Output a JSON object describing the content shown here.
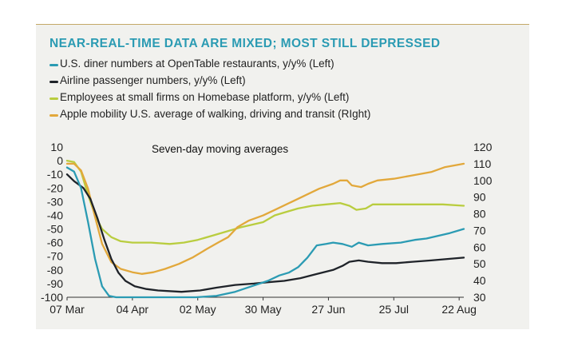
{
  "chart_data": {
    "type": "line",
    "title": "NEAR-REAL-TIME DATA ARE MIXED; MOST STILL DEPRESSED",
    "annotation": "Seven-day moving averages",
    "x_ticks": [
      "07 Mar",
      "04 Apr",
      "02 May",
      "30 May",
      "27 Jun",
      "25 Jul",
      "22 Aug"
    ],
    "x_range": [
      "2020-03-07",
      "2020-08-24"
    ],
    "left_axis": {
      "ylim": [
        -100,
        10
      ],
      "ticks": [
        10,
        0,
        -10,
        -20,
        -30,
        -40,
        -50,
        -60,
        -70,
        -80,
        -90,
        -100
      ]
    },
    "right_axis": {
      "ylim": [
        30,
        120
      ],
      "ticks": [
        120,
        110,
        100,
        90,
        80,
        70,
        60,
        50,
        40,
        30
      ]
    },
    "grid": false,
    "legend_position": "top-left",
    "series": [
      {
        "name": "U.S. diner numbers at OpenTable restaurants, y/y% (Left)",
        "axis": "left",
        "color": "#2b9bb3",
        "points": [
          [
            "2020-03-07",
            -5
          ],
          [
            "2020-03-10",
            -8
          ],
          [
            "2020-03-13",
            -20
          ],
          [
            "2020-03-16",
            -45
          ],
          [
            "2020-03-19",
            -72
          ],
          [
            "2020-03-22",
            -92
          ],
          [
            "2020-03-25",
            -99
          ],
          [
            "2020-03-28",
            -100
          ],
          [
            "2020-04-15",
            -100
          ],
          [
            "2020-05-01",
            -100
          ],
          [
            "2020-05-10",
            -99
          ],
          [
            "2020-05-18",
            -96
          ],
          [
            "2020-05-25",
            -92
          ],
          [
            "2020-06-01",
            -88
          ],
          [
            "2020-06-06",
            -84
          ],
          [
            "2020-06-10",
            -82
          ],
          [
            "2020-06-14",
            -78
          ],
          [
            "2020-06-18",
            -71
          ],
          [
            "2020-06-22",
            -62
          ],
          [
            "2020-06-26",
            -61
          ],
          [
            "2020-06-29",
            -60
          ],
          [
            "2020-07-03",
            -61
          ],
          [
            "2020-07-07",
            -63
          ],
          [
            "2020-07-10",
            -60
          ],
          [
            "2020-07-14",
            -62
          ],
          [
            "2020-07-20",
            -61
          ],
          [
            "2020-07-28",
            -60
          ],
          [
            "2020-08-03",
            -58
          ],
          [
            "2020-08-08",
            -57
          ],
          [
            "2020-08-13",
            -55
          ],
          [
            "2020-08-18",
            -53
          ],
          [
            "2020-08-24",
            -50
          ]
        ]
      },
      {
        "name": "Airline passenger numbers, y/y% (Left)",
        "axis": "left",
        "color": "#1f2329",
        "points": [
          [
            "2020-03-07",
            -10
          ],
          [
            "2020-03-10",
            -15
          ],
          [
            "2020-03-14",
            -20
          ],
          [
            "2020-03-17",
            -28
          ],
          [
            "2020-03-20",
            -42
          ],
          [
            "2020-03-23",
            -58
          ],
          [
            "2020-03-26",
            -72
          ],
          [
            "2020-03-29",
            -82
          ],
          [
            "2020-04-01",
            -88
          ],
          [
            "2020-04-05",
            -92
          ],
          [
            "2020-04-10",
            -94
          ],
          [
            "2020-04-15",
            -95
          ],
          [
            "2020-04-25",
            -96
          ],
          [
            "2020-05-03",
            -95
          ],
          [
            "2020-05-10",
            -93
          ],
          [
            "2020-05-18",
            -91
          ],
          [
            "2020-05-26",
            -90
          ],
          [
            "2020-06-01",
            -89
          ],
          [
            "2020-06-08",
            -88
          ],
          [
            "2020-06-15",
            -86
          ],
          [
            "2020-06-22",
            -83
          ],
          [
            "2020-06-29",
            -80
          ],
          [
            "2020-07-03",
            -77
          ],
          [
            "2020-07-06",
            -74
          ],
          [
            "2020-07-10",
            -73
          ],
          [
            "2020-07-14",
            -74
          ],
          [
            "2020-07-20",
            -75
          ],
          [
            "2020-07-26",
            -75
          ],
          [
            "2020-08-02",
            -74
          ],
          [
            "2020-08-10",
            -73
          ],
          [
            "2020-08-17",
            -72
          ],
          [
            "2020-08-24",
            -71
          ]
        ]
      },
      {
        "name": "Employees at small firms on Homebase platform, y/y% (Left)",
        "axis": "left",
        "color": "#b9cd3f",
        "points": [
          [
            "2020-03-07",
            0
          ],
          [
            "2020-03-10",
            -1
          ],
          [
            "2020-03-13",
            -8
          ],
          [
            "2020-03-16",
            -25
          ],
          [
            "2020-03-19",
            -40
          ],
          [
            "2020-03-22",
            -50
          ],
          [
            "2020-03-26",
            -56
          ],
          [
            "2020-03-30",
            -59
          ],
          [
            "2020-04-04",
            -60
          ],
          [
            "2020-04-12",
            -60
          ],
          [
            "2020-04-20",
            -61
          ],
          [
            "2020-04-26",
            -60
          ],
          [
            "2020-05-02",
            -58
          ],
          [
            "2020-05-08",
            -55
          ],
          [
            "2020-05-14",
            -52
          ],
          [
            "2020-05-20",
            -49
          ],
          [
            "2020-05-25",
            -47
          ],
          [
            "2020-05-30",
            -45
          ],
          [
            "2020-06-04",
            -40
          ],
          [
            "2020-06-08",
            -38
          ],
          [
            "2020-06-14",
            -35
          ],
          [
            "2020-06-20",
            -33
          ],
          [
            "2020-06-26",
            -32
          ],
          [
            "2020-07-02",
            -31
          ],
          [
            "2020-07-06",
            -33
          ],
          [
            "2020-07-09",
            -36
          ],
          [
            "2020-07-13",
            -35
          ],
          [
            "2020-07-16",
            -32
          ],
          [
            "2020-07-25",
            -32
          ],
          [
            "2020-08-05",
            -32
          ],
          [
            "2020-08-15",
            -32
          ],
          [
            "2020-08-24",
            -33
          ]
        ]
      },
      {
        "name": "Apple mobility U.S. average of walking, driving and transit (RIght)",
        "axis": "right",
        "color": "#e2a83b",
        "points": [
          [
            "2020-03-07",
            110
          ],
          [
            "2020-03-10",
            110
          ],
          [
            "2020-03-13",
            106
          ],
          [
            "2020-03-16",
            95
          ],
          [
            "2020-03-19",
            78
          ],
          [
            "2020-03-22",
            62
          ],
          [
            "2020-03-26",
            51
          ],
          [
            "2020-03-30",
            47
          ],
          [
            "2020-04-04",
            45
          ],
          [
            "2020-04-08",
            44
          ],
          [
            "2020-04-13",
            45
          ],
          [
            "2020-04-18",
            47
          ],
          [
            "2020-04-24",
            50
          ],
          [
            "2020-04-30",
            54
          ],
          [
            "2020-05-06",
            59
          ],
          [
            "2020-05-11",
            63
          ],
          [
            "2020-05-15",
            66
          ],
          [
            "2020-05-19",
            72
          ],
          [
            "2020-05-24",
            76
          ],
          [
            "2020-05-30",
            79
          ],
          [
            "2020-06-05",
            83
          ],
          [
            "2020-06-11",
            87
          ],
          [
            "2020-06-17",
            91
          ],
          [
            "2020-06-23",
            95
          ],
          [
            "2020-06-29",
            98
          ],
          [
            "2020-07-02",
            100
          ],
          [
            "2020-07-05",
            100
          ],
          [
            "2020-07-07",
            97
          ],
          [
            "2020-07-11",
            96
          ],
          [
            "2020-07-14",
            98
          ],
          [
            "2020-07-18",
            100
          ],
          [
            "2020-07-25",
            101
          ],
          [
            "2020-08-02",
            103
          ],
          [
            "2020-08-10",
            105
          ],
          [
            "2020-08-16",
            108
          ],
          [
            "2020-08-24",
            110
          ]
        ]
      }
    ]
  }
}
